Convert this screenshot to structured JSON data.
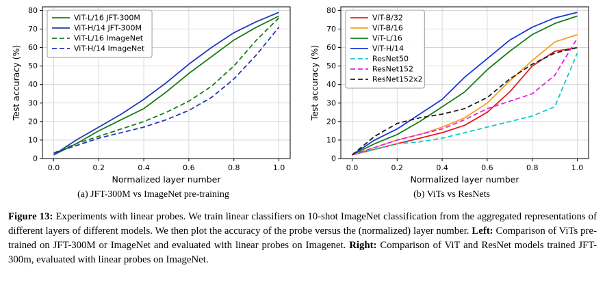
{
  "caption": {
    "segments": [
      {
        "bold": true,
        "text": "Figure 13:"
      },
      {
        "bold": false,
        "text": " Experiments with linear probes. We train linear classifiers on 10-shot ImageNet classification from the aggregated representations of different layers of different models. We then plot the accuracy of the probe versus the (normalized) layer number. "
      },
      {
        "bold": true,
        "text": "Left:"
      },
      {
        "bold": false,
        "text": " Comparison of ViTs pre-trained on JFT-300M or ImageNet and evaluated with linear probes on Imagenet. "
      },
      {
        "bold": true,
        "text": "Right:"
      },
      {
        "bold": false,
        "text": " Comparison of ViT and ResNet models trained JFT-300m, evaluated with linear probes on ImageNet."
      }
    ]
  },
  "chart_data": [
    {
      "type": "line",
      "subcaption": "(a) JFT-300M vs ImageNet pre-training",
      "xlabel": "Normalized layer number",
      "ylabel": "Test accuracy (%)",
      "xlim": [
        -0.05,
        1.05
      ],
      "ylim": [
        0,
        82
      ],
      "grid": true,
      "legend_position": "top-left",
      "xticks": [
        0.0,
        0.2,
        0.4,
        0.6,
        0.8,
        1.0
      ],
      "xtick_labels": [
        "0.0",
        "0.2",
        "0.4",
        "0.6",
        "0.8",
        "1.0"
      ],
      "yticks": [
        0,
        10,
        20,
        30,
        40,
        50,
        60,
        70,
        80
      ],
      "ytick_labels": [
        "0",
        "10",
        "20",
        "30",
        "40",
        "50",
        "60",
        "70",
        "80"
      ],
      "x": [
        0.0,
        0.1,
        0.2,
        0.3,
        0.4,
        0.5,
        0.6,
        0.7,
        0.8,
        0.9,
        1.0
      ],
      "series": [
        {
          "name": "ViT-L/16 JFT-300M",
          "color": "#177d17",
          "style": "solid",
          "values": [
            2,
            8,
            15,
            21,
            27,
            36,
            46,
            55,
            64,
            71,
            77
          ]
        },
        {
          "name": "ViT-H/14 JFT-300M",
          "color": "#2038b8",
          "style": "solid",
          "values": [
            2,
            10,
            17,
            24,
            32,
            41,
            51,
            60,
            68,
            74,
            79
          ]
        },
        {
          "name": "ViT-L/16 ImageNet",
          "color": "#177d17",
          "style": "dashed",
          "values": [
            3,
            8,
            12,
            16,
            20,
            25,
            31,
            39,
            50,
            64,
            76
          ]
        },
        {
          "name": "ViT-H/14 ImageNet",
          "color": "#2038b8",
          "style": "dashed",
          "values": [
            3,
            7,
            11,
            14,
            17,
            21,
            26,
            33,
            43,
            56,
            71
          ]
        }
      ]
    },
    {
      "type": "line",
      "subcaption": "(b) ViTs vs ResNets",
      "xlabel": "Normalized layer number",
      "ylabel": "Test accuracy (%)",
      "xlim": [
        -0.05,
        1.05
      ],
      "ylim": [
        0,
        82
      ],
      "grid": true,
      "legend_position": "top-left",
      "xticks": [
        0.0,
        0.2,
        0.4,
        0.6,
        0.8,
        1.0
      ],
      "xtick_labels": [
        "0.0",
        "0.2",
        "0.4",
        "0.6",
        "0.8",
        "1.0"
      ],
      "yticks": [
        0,
        10,
        20,
        30,
        40,
        50,
        60,
        70,
        80
      ],
      "ytick_labels": [
        "0",
        "10",
        "20",
        "30",
        "40",
        "50",
        "60",
        "70",
        "80"
      ],
      "x": [
        0.0,
        0.1,
        0.2,
        0.3,
        0.4,
        0.5,
        0.6,
        0.7,
        0.8,
        0.9,
        1.0
      ],
      "series": [
        {
          "name": "ViT-B/32",
          "color": "#e8191c",
          "style": "solid",
          "values": [
            2,
            5,
            8,
            11,
            14,
            18,
            25,
            36,
            50,
            58,
            60
          ]
        },
        {
          "name": "ViT-B/16",
          "color": "#f5a11d",
          "style": "solid",
          "values": [
            2,
            6,
            10,
            13,
            17,
            22,
            30,
            42,
            53,
            63,
            67
          ]
        },
        {
          "name": "ViT-L/16",
          "color": "#177d17",
          "style": "solid",
          "values": [
            2,
            8,
            13,
            20,
            28,
            36,
            48,
            58,
            67,
            73,
            77
          ]
        },
        {
          "name": "ViT-H/14",
          "color": "#1437d8",
          "style": "solid",
          "values": [
            2,
            10,
            16,
            24,
            32,
            44,
            54,
            64,
            71,
            76,
            79
          ]
        },
        {
          "name": "ResNet50",
          "color": "#11c9c9",
          "style": "dashed",
          "values": [
            2,
            5,
            8,
            9,
            11,
            14,
            17,
            20,
            23,
            28,
            57
          ]
        },
        {
          "name": "ResNet152",
          "color": "#e520dc",
          "style": "dashed",
          "values": [
            2,
            6,
            10,
            13,
            16,
            21,
            27,
            31,
            35,
            45,
            65
          ]
        },
        {
          "name": "ResNet152x2",
          "color": "#1c1c1c",
          "style": "dashed",
          "values": [
            2,
            12,
            19,
            22,
            24,
            27,
            33,
            43,
            51,
            57,
            60
          ]
        }
      ]
    }
  ]
}
